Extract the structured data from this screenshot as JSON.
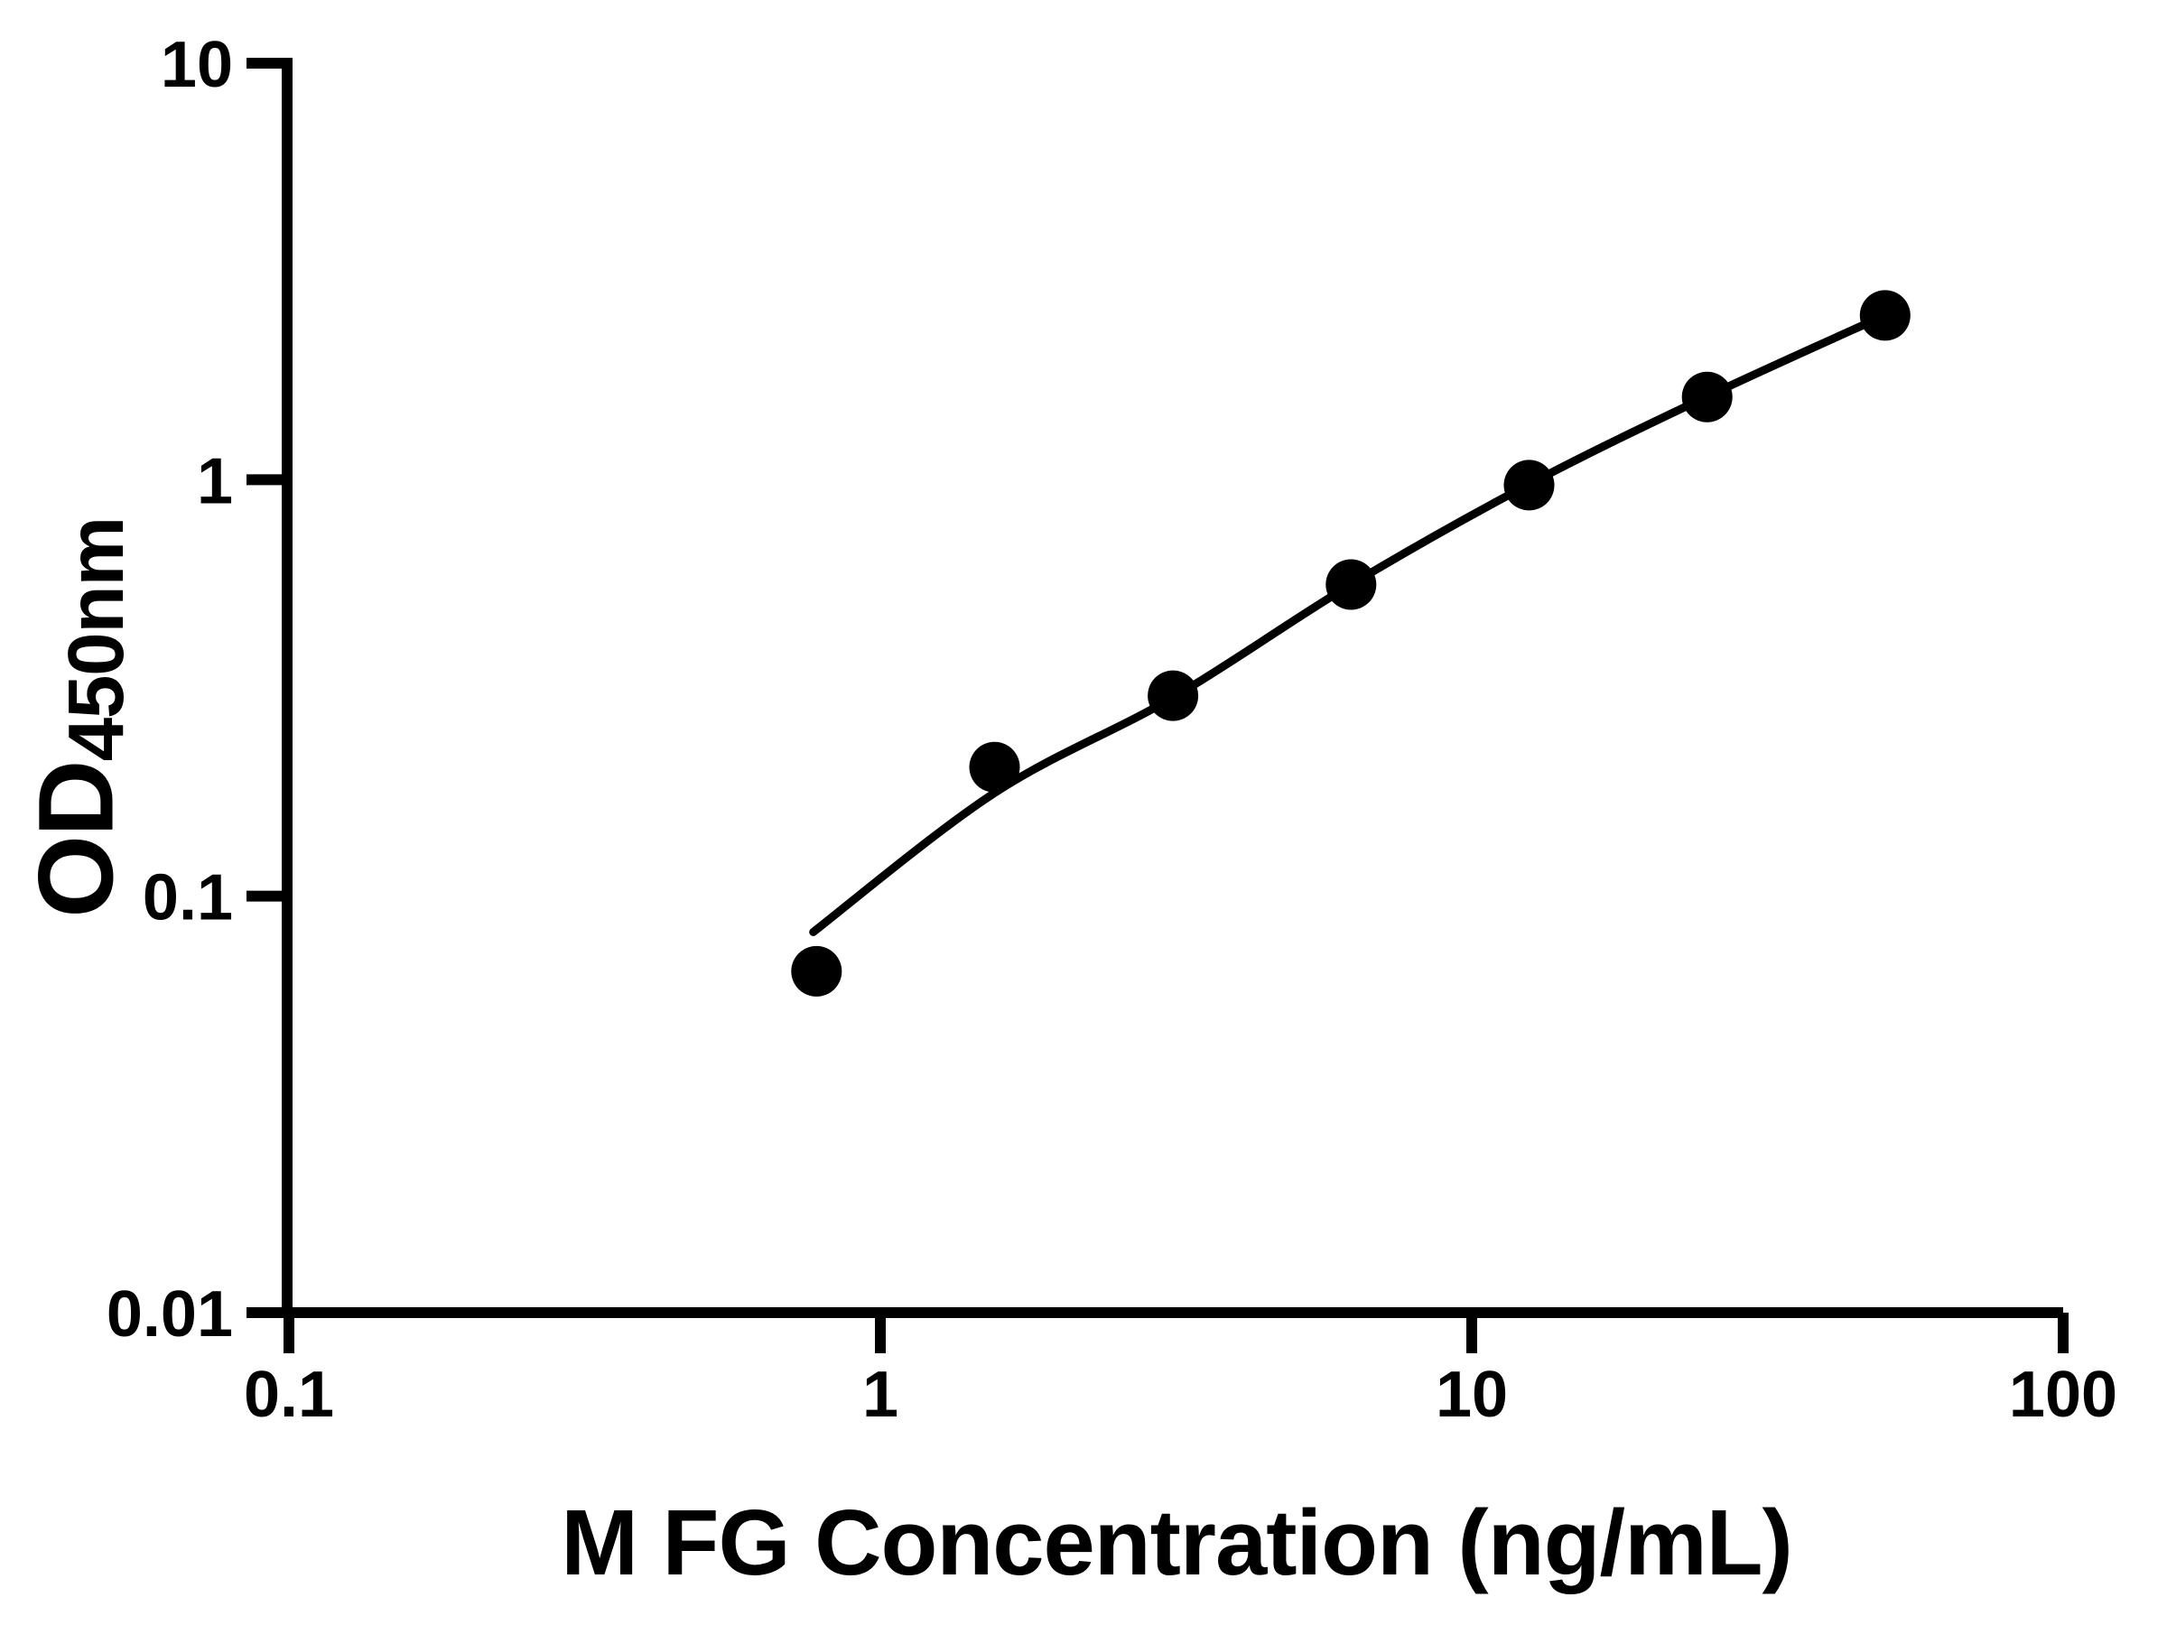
{
  "figure": {
    "background": "#ffffff",
    "ink": "#000000"
  },
  "chart_data": {
    "type": "scatter",
    "title": "",
    "grid": false,
    "legend": false,
    "x_axis": {
      "label": "M FG Concentration (ng/mL)",
      "scale": "log",
      "range": [
        0.1,
        100
      ],
      "ticks": [
        {
          "v": 0.1,
          "label": "0.1"
        },
        {
          "v": 1,
          "label": "1"
        },
        {
          "v": 10,
          "label": "10"
        },
        {
          "v": 100,
          "label": "100"
        }
      ]
    },
    "y_axis": {
      "label_main": "OD",
      "label_sub": "450nm",
      "scale": "log",
      "range": [
        0.01,
        10
      ],
      "ticks": [
        {
          "v": 10,
          "label": "10"
        },
        {
          "v": 1,
          "label": "1"
        },
        {
          "v": 0.1,
          "label": "0.1"
        },
        {
          "v": 0.01,
          "label": "0.01"
        }
      ]
    },
    "series": [
      {
        "name": "standard-points",
        "marker": "filled-circle",
        "color": "#000000",
        "points": [
          {
            "x": 0.78,
            "y": 0.066
          },
          {
            "x": 1.56,
            "y": 0.204
          },
          {
            "x": 3.125,
            "y": 0.303
          },
          {
            "x": 6.25,
            "y": 0.56
          },
          {
            "x": 12.5,
            "y": 0.97
          },
          {
            "x": 25,
            "y": 1.58
          },
          {
            "x": 50,
            "y": 2.48
          }
        ]
      }
    ],
    "fit_curve": {
      "color": "#000000",
      "points": [
        {
          "x": 0.77,
          "y": 0.082
        },
        {
          "x": 1.56,
          "y": 0.177
        },
        {
          "x": 3.125,
          "y": 0.3
        },
        {
          "x": 6.25,
          "y": 0.56
        },
        {
          "x": 12.5,
          "y": 0.975
        },
        {
          "x": 25,
          "y": 1.584
        },
        {
          "x": 50,
          "y": 2.483
        }
      ]
    }
  }
}
